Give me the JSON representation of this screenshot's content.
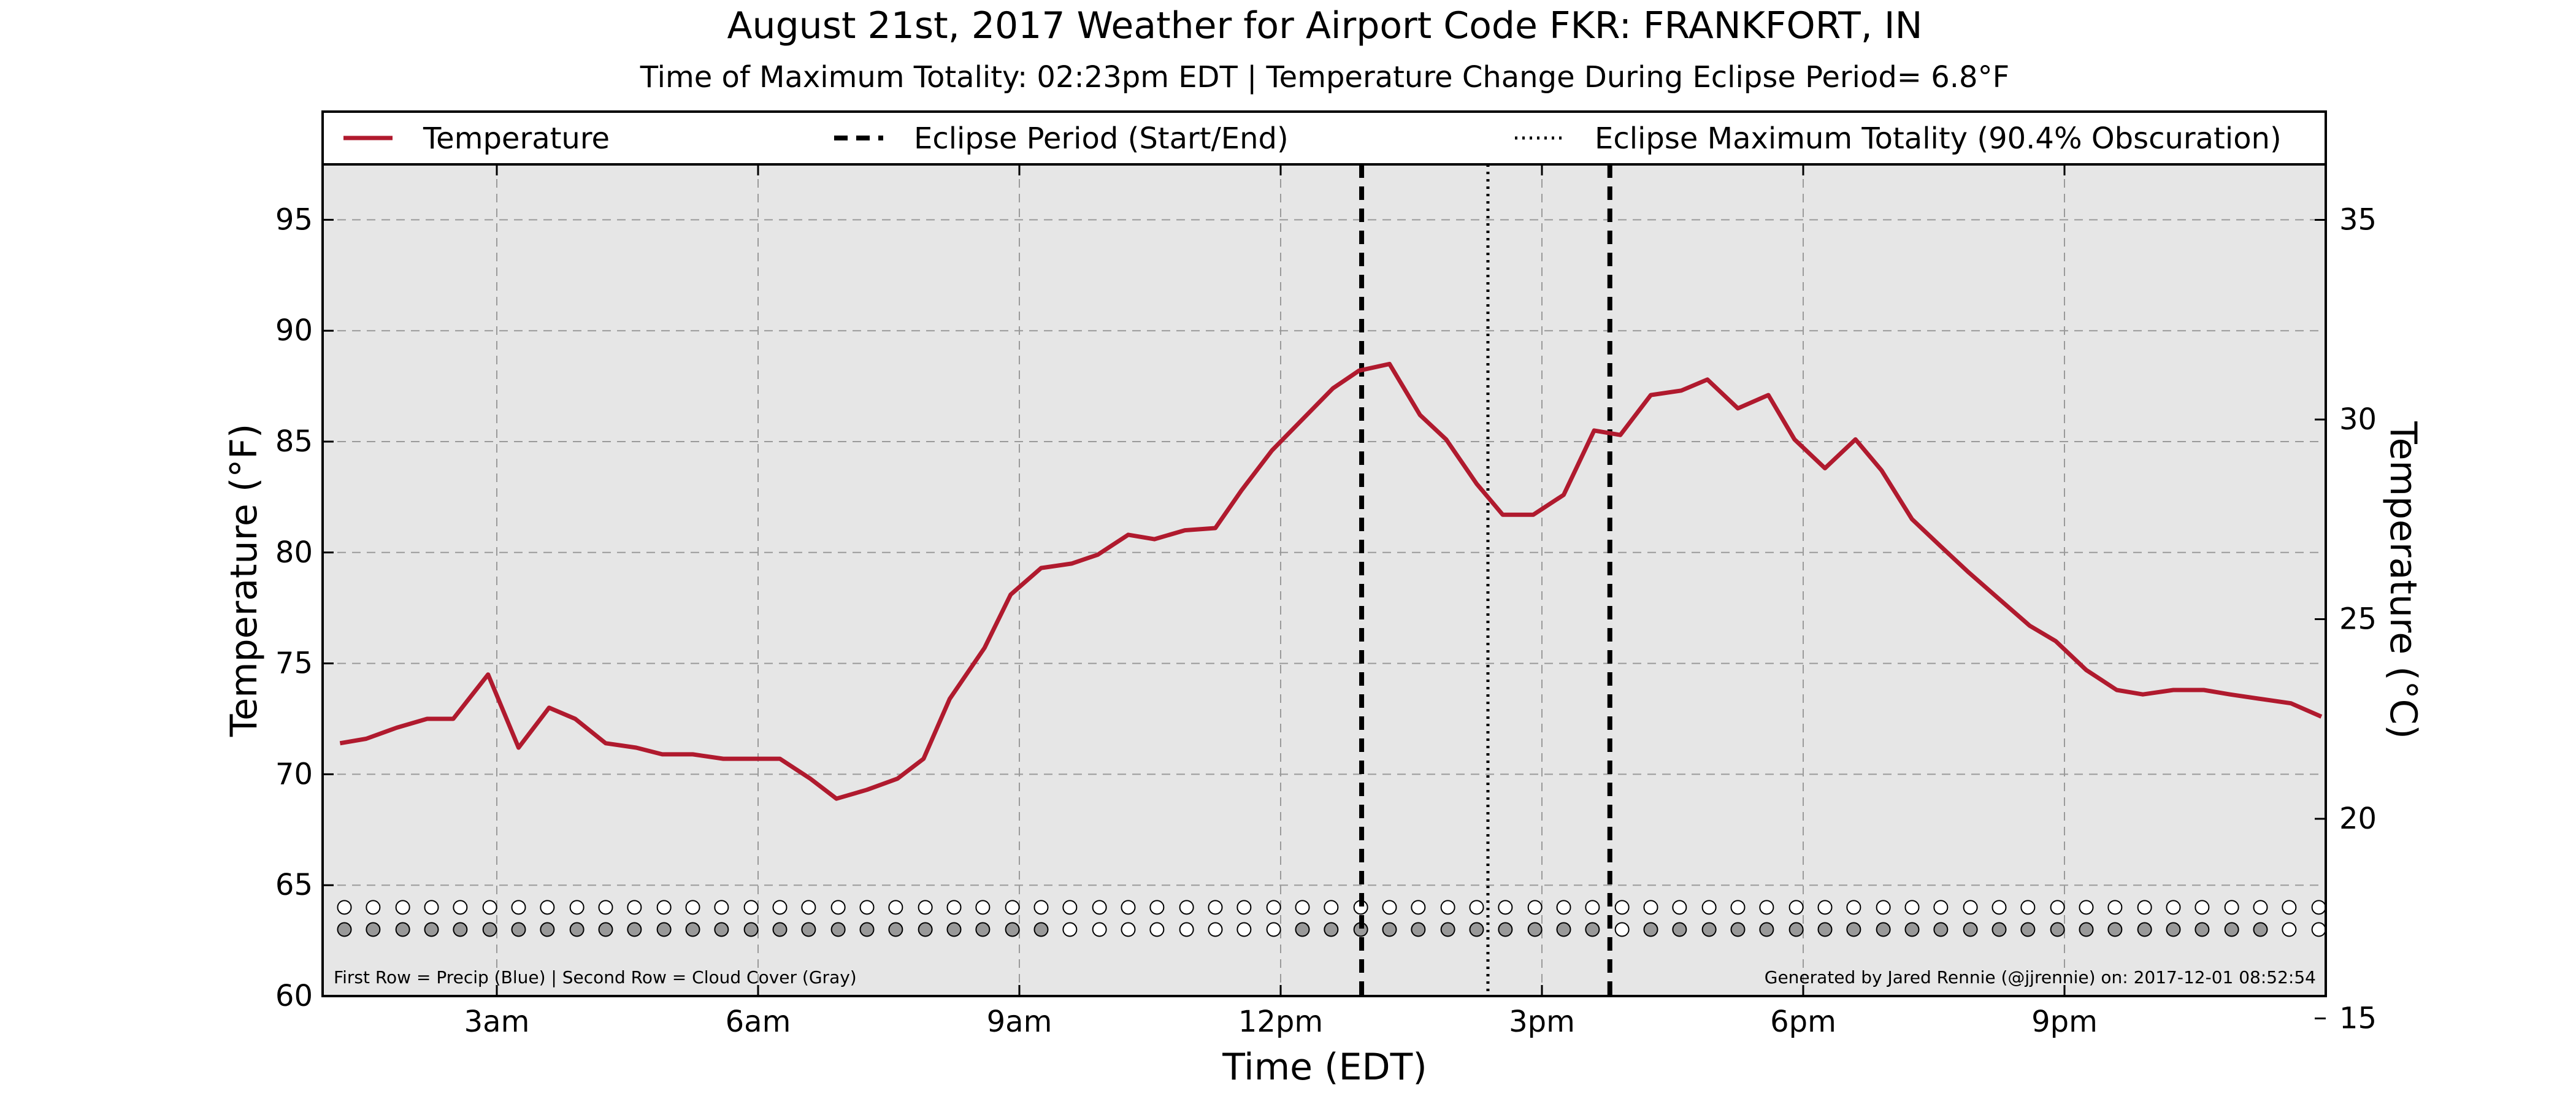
{
  "chart_data": {
    "type": "line",
    "title": "August 21st, 2017 Weather for Airport Code FKR: FRANKFORT, IN",
    "subtitle": "Time of Maximum Totality: 02:23pm EDT | Temperature Change During Eclipse Period= 6.8°F",
    "xlabel": "Time (EDT)",
    "ylabel": "Temperature (°F)",
    "ylabel_right": "Temperature (°C)",
    "xlim": [
      1.0,
      24.0
    ],
    "ylim": [
      60,
      97.5
    ],
    "ylim_right": [
      15.56,
      36.39
    ],
    "x_ticks": [
      {
        "x": 3,
        "label": "3am"
      },
      {
        "x": 6,
        "label": "6am"
      },
      {
        "x": 9,
        "label": "9am"
      },
      {
        "x": 12,
        "label": "12pm"
      },
      {
        "x": 15,
        "label": "3pm"
      },
      {
        "x": 18,
        "label": "6pm"
      },
      {
        "x": 21,
        "label": "9pm"
      }
    ],
    "y_ticks": [
      60,
      65,
      70,
      75,
      80,
      85,
      90,
      95
    ],
    "y_ticks_right": [
      15,
      20,
      25,
      30,
      35
    ],
    "grid": true,
    "legend": [
      {
        "label": "Temperature",
        "style": "solid",
        "color": "#b01a2e"
      },
      {
        "label": "Eclipse Period (Start/End)",
        "style": "dashed",
        "color": "#000000"
      },
      {
        "label": "Eclipse Maximum Totality (90.4% Obscuration)",
        "style": "dotted",
        "color": "#000000"
      }
    ],
    "legend_position": "top, above plot",
    "series": [
      {
        "name": "Temperature",
        "color": "#b01a2e",
        "x": [
          1.2,
          1.5,
          1.85,
          2.2,
          2.5,
          2.9,
          3.25,
          3.6,
          3.9,
          4.25,
          4.6,
          4.9,
          5.25,
          5.6,
          5.9,
          6.25,
          6.6,
          6.9,
          7.25,
          7.6,
          7.9,
          8.2,
          8.6,
          8.9,
          9.25,
          9.6,
          9.9,
          10.25,
          10.55,
          10.9,
          11.25,
          11.55,
          11.9,
          12.2,
          12.6,
          12.9,
          13.25,
          13.6,
          13.9,
          14.25,
          14.55,
          14.9,
          15.25,
          15.6,
          15.9,
          16.25,
          16.6,
          16.9,
          17.25,
          17.6,
          17.9,
          18.25,
          18.6,
          18.9,
          19.25,
          19.6,
          19.9,
          20.25,
          20.6,
          20.9,
          21.25,
          21.6,
          21.9,
          22.25,
          22.6,
          22.9,
          23.25,
          23.6,
          23.95
        ],
        "y": [
          71.4,
          71.6,
          72.1,
          72.5,
          72.5,
          74.5,
          71.2,
          73.0,
          72.5,
          71.4,
          71.2,
          70.9,
          70.9,
          70.7,
          70.7,
          70.7,
          69.8,
          68.9,
          69.3,
          69.8,
          70.7,
          73.4,
          75.7,
          78.1,
          79.3,
          79.5,
          79.9,
          80.8,
          80.6,
          81.0,
          81.1,
          82.8,
          84.6,
          85.8,
          87.4,
          88.2,
          88.5,
          86.2,
          85.1,
          83.1,
          81.7,
          81.7,
          82.6,
          85.5,
          85.3,
          87.1,
          87.3,
          87.8,
          86.5,
          87.1,
          85.1,
          83.8,
          85.1,
          83.7,
          81.5,
          80.2,
          79.1,
          77.9,
          76.7,
          76.0,
          74.7,
          73.8,
          73.6,
          73.8,
          73.8,
          73.6,
          73.4,
          73.2,
          72.6
        ]
      }
    ],
    "eclipse_start": 12.93,
    "eclipse_max": 14.38,
    "eclipse_end": 15.78,
    "bottom_rows": {
      "x": [
        1.25,
        1.58,
        1.92,
        2.25,
        2.58,
        2.92,
        3.25,
        3.58,
        3.92,
        4.25,
        4.58,
        4.92,
        5.25,
        5.58,
        5.92,
        6.25,
        6.58,
        6.92,
        7.25,
        7.58,
        7.92,
        8.25,
        8.58,
        8.92,
        9.25,
        9.58,
        9.92,
        10.25,
        10.58,
        10.92,
        11.25,
        11.58,
        11.92,
        12.25,
        12.58,
        12.92,
        13.25,
        13.58,
        13.92,
        14.25,
        14.58,
        14.92,
        15.25,
        15.58,
        15.92,
        16.25,
        16.58,
        16.92,
        17.25,
        17.58,
        17.92,
        18.25,
        18.58,
        18.92,
        19.25,
        19.58,
        19.92,
        20.25,
        20.58,
        20.92,
        21.25,
        21.58,
        21.92,
        22.25,
        22.58,
        22.92,
        23.25,
        23.58,
        23.92
      ],
      "precip_y": 64.0,
      "cloud_y": 63.0,
      "precip_filled": [
        0,
        0,
        0,
        0,
        0,
        0,
        0,
        0,
        0,
        0,
        0,
        0,
        0,
        0,
        0,
        0,
        0,
        0,
        0,
        0,
        0,
        0,
        0,
        0,
        0,
        0,
        0,
        0,
        0,
        0,
        0,
        0,
        0,
        0,
        0,
        0,
        0,
        0,
        0,
        0,
        0,
        0,
        0,
        0,
        0,
        0,
        0,
        0,
        0,
        0,
        0,
        0,
        0,
        0,
        0,
        0,
        0,
        0,
        0,
        0,
        0,
        0,
        0,
        0,
        0,
        0,
        0,
        0,
        0
      ],
      "cloud_filled": [
        1,
        1,
        1,
        1,
        1,
        1,
        1,
        1,
        1,
        1,
        1,
        1,
        1,
        1,
        1,
        1,
        1,
        1,
        1,
        1,
        1,
        1,
        1,
        1,
        1,
        0,
        0,
        0,
        0,
        0,
        0,
        0,
        0,
        1,
        1,
        1,
        1,
        1,
        1,
        1,
        1,
        1,
        1,
        1,
        0,
        1,
        1,
        1,
        1,
        1,
        1,
        1,
        1,
        1,
        1,
        1,
        1,
        1,
        1,
        1,
        1,
        1,
        1,
        1,
        1,
        1,
        1,
        0,
        0
      ],
      "precip_color": "#3b6fd6",
      "cloud_color": "#999999"
    },
    "note_left": "First Row = Precip (Blue) | Second Row = Cloud Cover (Gray)",
    "note_right": "Generated by Jared Rennie (@jjrennie) on: 2017-12-01 08:52:54",
    "colors": {
      "plot_background": "#e6e6e6",
      "grid": "#9a9a9a"
    }
  }
}
